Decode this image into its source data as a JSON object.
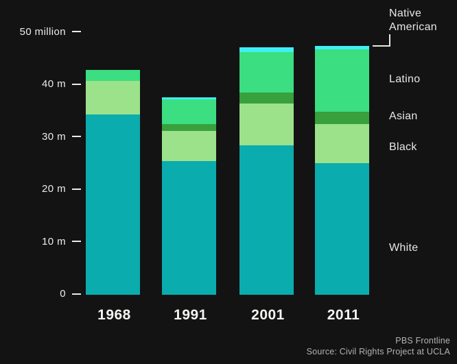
{
  "chart_data": {
    "type": "bar",
    "stacked": true,
    "title": "",
    "xlabel": "",
    "ylabel": "",
    "ylim": [
      0,
      52
    ],
    "grid": false,
    "legend_position": "right",
    "categories": [
      "1968",
      "1991",
      "2001",
      "2011"
    ],
    "series": [
      {
        "name": "White",
        "color": "#0AACAE",
        "values": [
          34.4,
          25.5,
          28.5,
          25.1
        ]
      },
      {
        "name": "Black",
        "color": "#9BE28B",
        "values": [
          6.4,
          5.8,
          8.0,
          7.4
        ]
      },
      {
        "name": "Asian",
        "color": "#38A03C",
        "values": [
          0,
          1.2,
          2.1,
          2.4
        ]
      },
      {
        "name": "Latino",
        "color": "#3BDE81",
        "values": [
          2.1,
          4.7,
          7.7,
          11.9
        ]
      },
      {
        "name": "Native American",
        "color": "#3FEFF4",
        "values": [
          0,
          0.4,
          0.9,
          0.6
        ]
      }
    ],
    "yticks": [
      {
        "value": 50,
        "label": "50 million"
      },
      {
        "value": 40,
        "label": "40 m"
      },
      {
        "value": 30,
        "label": "30 m"
      },
      {
        "value": 20,
        "label": "20 m"
      },
      {
        "value": 10,
        "label": "10 m"
      },
      {
        "value": 0,
        "label": "0"
      }
    ]
  },
  "legend": {
    "native_american": "Native American",
    "latino": "Latino",
    "asian": "Asian",
    "black": "Black",
    "white": "White"
  },
  "footer": {
    "line1": "PBS Frontline",
    "line2": "Source: Civil Rights Project at UCLA"
  },
  "colors": {
    "background": "#131313",
    "axis_text": "#ECECEA",
    "footer_text": "#B4B4B4"
  }
}
